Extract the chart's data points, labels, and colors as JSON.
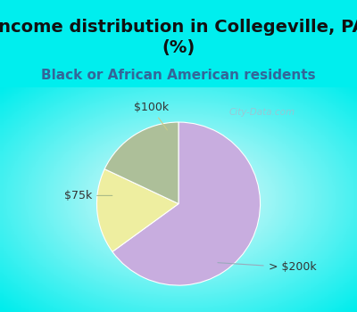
{
  "title": "Income distribution in Collegeville, PA\n(%)",
  "subtitle": "Black or African American residents",
  "slices": [
    {
      "label": "> $200k",
      "value": 65,
      "color": "#C8ADDF"
    },
    {
      "label": "$100k",
      "value": 17,
      "color": "#EEEEA0"
    },
    {
      "label": "$75k",
      "value": 18,
      "color": "#ADBF99"
    }
  ],
  "startangle": 90,
  "title_fontsize": 14,
  "subtitle_fontsize": 11,
  "label_fontsize": 9,
  "title_color": "#111111",
  "subtitle_color": "#336699",
  "label_color": "#333333",
  "bg_cyan": "#00EEEE",
  "watermark": "City-Data.com",
  "watermark_color": "#AABBCC"
}
